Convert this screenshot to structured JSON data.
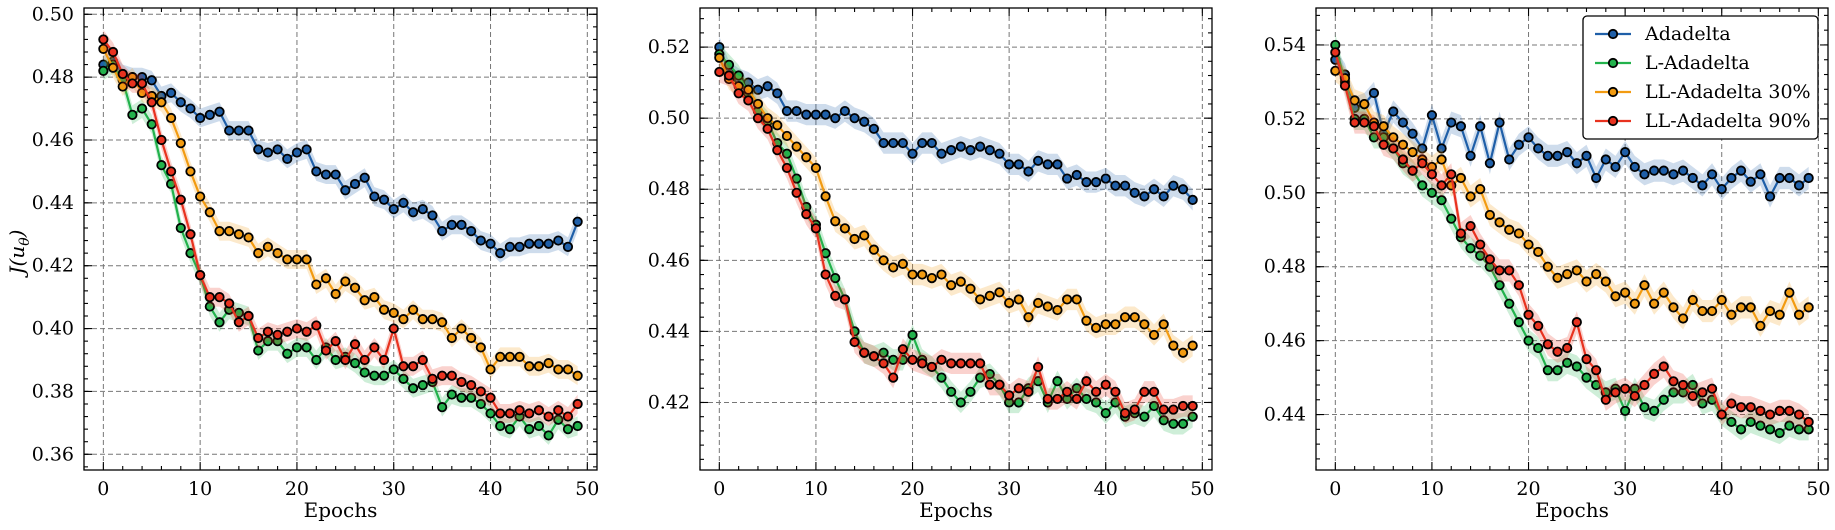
{
  "figure": {
    "ylabel": "J(u_θ)",
    "xlabel": "Epochs"
  },
  "legend": [
    {
      "label": "Adadelta",
      "color": "#1f5fa8"
    },
    {
      "label": "L-Adadelta",
      "color": "#22b24c"
    },
    {
      "label": "LL-Adadelta 30%",
      "color": "#f29b11"
    },
    {
      "label": "LL-Adadelta 90%",
      "color": "#e8321f"
    }
  ],
  "chart_data": [
    {
      "type": "line",
      "xlabel": "Epochs",
      "ylabel": "J(u_θ)",
      "xlim": [
        -2,
        51
      ],
      "ylim": [
        0.355,
        0.502
      ],
      "xticks": [
        0,
        10,
        20,
        30,
        40,
        50
      ],
      "yticks": [
        0.36,
        0.38,
        0.4,
        0.42,
        0.44,
        0.46,
        0.48,
        0.5
      ],
      "yticklabels": [
        "0.36",
        "0.38",
        "0.40",
        "0.42",
        "0.44",
        "0.46",
        "0.48",
        "0.50"
      ],
      "grid": true,
      "band": 0.003,
      "x": [
        0,
        1,
        2,
        3,
        4,
        5,
        6,
        7,
        8,
        9,
        10,
        11,
        12,
        13,
        14,
        15,
        16,
        17,
        18,
        19,
        20,
        21,
        22,
        23,
        24,
        25,
        26,
        27,
        28,
        29,
        30,
        31,
        32,
        33,
        34,
        35,
        36,
        37,
        38,
        39,
        40,
        41,
        42,
        43,
        44,
        45,
        46,
        47,
        48,
        49
      ],
      "series": [
        {
          "name": "Adadelta",
          "color": "#1f5fa8",
          "values": [
            0.484,
            0.485,
            0.481,
            0.48,
            0.48,
            0.479,
            0.474,
            0.475,
            0.472,
            0.47,
            0.467,
            0.468,
            0.469,
            0.463,
            0.463,
            0.463,
            0.457,
            0.456,
            0.457,
            0.454,
            0.456,
            0.457,
            0.45,
            0.449,
            0.449,
            0.444,
            0.446,
            0.448,
            0.442,
            0.441,
            0.438,
            0.44,
            0.437,
            0.438,
            0.436,
            0.431,
            0.433,
            0.433,
            0.431,
            0.428,
            0.427,
            0.424,
            0.426,
            0.426,
            0.427,
            0.427,
            0.427,
            0.428,
            0.426,
            0.434
          ]
        },
        {
          "name": "L-Adadelta",
          "color": "#22b24c",
          "values": [
            0.482,
            0.484,
            0.479,
            0.468,
            0.47,
            0.465,
            0.452,
            0.446,
            0.432,
            0.424,
            0.417,
            0.407,
            0.402,
            0.406,
            0.405,
            0.404,
            0.393,
            0.396,
            0.396,
            0.392,
            0.394,
            0.394,
            0.39,
            0.394,
            0.39,
            0.391,
            0.389,
            0.386,
            0.385,
            0.385,
            0.387,
            0.384,
            0.381,
            0.382,
            0.383,
            0.375,
            0.379,
            0.378,
            0.378,
            0.376,
            0.373,
            0.369,
            0.368,
            0.372,
            0.368,
            0.369,
            0.366,
            0.371,
            0.368,
            0.369
          ]
        },
        {
          "name": "LL-Adadelta 30%",
          "color": "#f29b11",
          "values": [
            0.489,
            0.483,
            0.477,
            0.48,
            0.475,
            0.474,
            0.472,
            0.467,
            0.459,
            0.45,
            0.442,
            0.437,
            0.431,
            0.431,
            0.43,
            0.429,
            0.424,
            0.426,
            0.424,
            0.422,
            0.422,
            0.422,
            0.414,
            0.416,
            0.411,
            0.415,
            0.413,
            0.409,
            0.41,
            0.406,
            0.405,
            0.403,
            0.406,
            0.403,
            0.403,
            0.402,
            0.397,
            0.4,
            0.397,
            0.394,
            0.387,
            0.391,
            0.391,
            0.391,
            0.388,
            0.388,
            0.389,
            0.387,
            0.387,
            0.385
          ]
        },
        {
          "name": "LL-Adadelta 90%",
          "color": "#e8321f",
          "values": [
            0.492,
            0.488,
            0.481,
            0.478,
            0.478,
            0.472,
            0.46,
            0.45,
            0.441,
            0.43,
            0.417,
            0.41,
            0.41,
            0.408,
            0.402,
            0.404,
            0.397,
            0.399,
            0.398,
            0.399,
            0.4,
            0.399,
            0.401,
            0.393,
            0.396,
            0.39,
            0.395,
            0.39,
            0.394,
            0.39,
            0.4,
            0.388,
            0.388,
            0.39,
            0.384,
            0.385,
            0.385,
            0.383,
            0.382,
            0.38,
            0.378,
            0.373,
            0.373,
            0.374,
            0.373,
            0.374,
            0.372,
            0.374,
            0.372,
            0.376
          ]
        }
      ]
    },
    {
      "type": "line",
      "xlabel": "Epochs",
      "ylabel": "",
      "xlim": [
        -2,
        51
      ],
      "ylim": [
        0.401,
        0.531
      ],
      "xticks": [
        0,
        10,
        20,
        30,
        40,
        50
      ],
      "yticks": [
        0.42,
        0.44,
        0.46,
        0.48,
        0.5,
        0.52
      ],
      "yticklabels": [
        "0.42",
        "0.44",
        "0.46",
        "0.48",
        "0.50",
        "0.52"
      ],
      "grid": true,
      "band": 0.003,
      "x": [
        0,
        1,
        2,
        3,
        4,
        5,
        6,
        7,
        8,
        9,
        10,
        11,
        12,
        13,
        14,
        15,
        16,
        17,
        18,
        19,
        20,
        21,
        22,
        23,
        24,
        25,
        26,
        27,
        28,
        29,
        30,
        31,
        32,
        33,
        34,
        35,
        36,
        37,
        38,
        39,
        40,
        41,
        42,
        43,
        44,
        45,
        46,
        47,
        48,
        49
      ],
      "series": [
        {
          "name": "Adadelta",
          "color": "#1f5fa8",
          "values": [
            0.52,
            0.513,
            0.511,
            0.51,
            0.508,
            0.509,
            0.507,
            0.502,
            0.502,
            0.501,
            0.501,
            0.501,
            0.5,
            0.502,
            0.5,
            0.499,
            0.497,
            0.493,
            0.493,
            0.493,
            0.49,
            0.493,
            0.493,
            0.49,
            0.491,
            0.492,
            0.491,
            0.492,
            0.491,
            0.49,
            0.487,
            0.487,
            0.485,
            0.488,
            0.487,
            0.487,
            0.483,
            0.484,
            0.482,
            0.482,
            0.483,
            0.481,
            0.481,
            0.479,
            0.478,
            0.48,
            0.478,
            0.481,
            0.48,
            0.477
          ]
        },
        {
          "name": "L-Adadelta",
          "color": "#22b24c",
          "values": [
            0.518,
            0.515,
            0.512,
            0.507,
            0.502,
            0.499,
            0.493,
            0.49,
            0.483,
            0.475,
            0.47,
            0.462,
            0.455,
            0.449,
            0.44,
            0.434,
            0.433,
            0.434,
            0.432,
            0.432,
            0.439,
            0.432,
            0.43,
            0.427,
            0.423,
            0.42,
            0.423,
            0.427,
            0.428,
            0.425,
            0.42,
            0.42,
            0.424,
            0.426,
            0.42,
            0.426,
            0.421,
            0.424,
            0.421,
            0.42,
            0.417,
            0.42,
            0.416,
            0.417,
            0.416,
            0.419,
            0.415,
            0.414,
            0.414,
            0.416
          ]
        },
        {
          "name": "LL-Adadelta 30%",
          "color": "#f29b11",
          "values": [
            0.517,
            0.511,
            0.509,
            0.508,
            0.504,
            0.5,
            0.498,
            0.495,
            0.492,
            0.489,
            0.486,
            0.478,
            0.471,
            0.469,
            0.466,
            0.467,
            0.463,
            0.46,
            0.458,
            0.459,
            0.456,
            0.456,
            0.455,
            0.456,
            0.453,
            0.454,
            0.452,
            0.449,
            0.45,
            0.451,
            0.448,
            0.449,
            0.444,
            0.448,
            0.447,
            0.446,
            0.449,
            0.449,
            0.443,
            0.441,
            0.442,
            0.442,
            0.444,
            0.444,
            0.442,
            0.439,
            0.442,
            0.436,
            0.434,
            0.436
          ]
        },
        {
          "name": "LL-Adadelta 90%",
          "color": "#e8321f",
          "values": [
            0.513,
            0.512,
            0.507,
            0.505,
            0.5,
            0.497,
            0.491,
            0.486,
            0.479,
            0.473,
            0.469,
            0.456,
            0.45,
            0.449,
            0.437,
            0.434,
            0.433,
            0.431,
            0.427,
            0.435,
            0.432,
            0.431,
            0.43,
            0.432,
            0.431,
            0.431,
            0.431,
            0.431,
            0.425,
            0.425,
            0.422,
            0.424,
            0.423,
            0.43,
            0.421,
            0.421,
            0.423,
            0.421,
            0.426,
            0.423,
            0.425,
            0.423,
            0.417,
            0.418,
            0.423,
            0.423,
            0.418,
            0.418,
            0.419,
            0.419
          ]
        }
      ]
    },
    {
      "type": "line",
      "xlabel": "Epochs",
      "ylabel": "",
      "xlim": [
        -2,
        51
      ],
      "ylim": [
        0.425,
        0.55
      ],
      "xticks": [
        0,
        10,
        20,
        30,
        40,
        50
      ],
      "yticks": [
        0.44,
        0.46,
        0.48,
        0.5,
        0.52,
        0.54
      ],
      "yticklabels": [
        "0.44",
        "0.46",
        "0.48",
        "0.50",
        "0.52",
        "0.54"
      ],
      "grid": true,
      "band": 0.003,
      "legend_position": "top-right",
      "x": [
        0,
        1,
        2,
        3,
        4,
        5,
        6,
        7,
        8,
        9,
        10,
        11,
        12,
        13,
        14,
        15,
        16,
        17,
        18,
        19,
        20,
        21,
        22,
        23,
        24,
        25,
        26,
        27,
        28,
        29,
        30,
        31,
        32,
        33,
        34,
        35,
        36,
        37,
        38,
        39,
        40,
        41,
        42,
        43,
        44,
        45,
        46,
        47,
        48,
        49
      ],
      "series": [
        {
          "name": "Adadelta",
          "color": "#1f5fa8",
          "values": [
            0.536,
            0.532,
            0.523,
            0.524,
            0.527,
            0.516,
            0.522,
            0.519,
            0.516,
            0.512,
            0.521,
            0.512,
            0.519,
            0.518,
            0.51,
            0.518,
            0.508,
            0.519,
            0.509,
            0.513,
            0.515,
            0.512,
            0.51,
            0.51,
            0.511,
            0.508,
            0.51,
            0.504,
            0.509,
            0.507,
            0.511,
            0.507,
            0.505,
            0.506,
            0.506,
            0.505,
            0.506,
            0.504,
            0.502,
            0.505,
            0.501,
            0.504,
            0.506,
            0.503,
            0.505,
            0.499,
            0.504,
            0.504,
            0.502,
            0.504
          ]
        },
        {
          "name": "L-Adadelta",
          "color": "#22b24c",
          "values": [
            0.54,
            0.53,
            0.52,
            0.52,
            0.515,
            0.515,
            0.512,
            0.508,
            0.506,
            0.502,
            0.5,
            0.498,
            0.493,
            0.488,
            0.485,
            0.483,
            0.48,
            0.475,
            0.47,
            0.465,
            0.46,
            0.458,
            0.452,
            0.452,
            0.454,
            0.453,
            0.45,
            0.448,
            0.446,
            0.447,
            0.441,
            0.447,
            0.442,
            0.441,
            0.444,
            0.446,
            0.446,
            0.448,
            0.443,
            0.444,
            0.44,
            0.438,
            0.436,
            0.438,
            0.437,
            0.436,
            0.435,
            0.437,
            0.436,
            0.436
          ]
        },
        {
          "name": "LL-Adadelta 30%",
          "color": "#f29b11",
          "values": [
            0.533,
            0.531,
            0.525,
            0.524,
            0.519,
            0.518,
            0.515,
            0.513,
            0.511,
            0.509,
            0.507,
            0.509,
            0.502,
            0.504,
            0.499,
            0.501,
            0.494,
            0.492,
            0.49,
            0.489,
            0.486,
            0.484,
            0.48,
            0.477,
            0.478,
            0.479,
            0.476,
            0.478,
            0.476,
            0.472,
            0.473,
            0.47,
            0.475,
            0.47,
            0.473,
            0.469,
            0.466,
            0.471,
            0.468,
            0.468,
            0.471,
            0.467,
            0.469,
            0.469,
            0.464,
            0.468,
            0.467,
            0.473,
            0.467,
            0.469
          ]
        },
        {
          "name": "LL-Adadelta 90%",
          "color": "#e8321f",
          "values": [
            0.538,
            0.529,
            0.519,
            0.519,
            0.518,
            0.513,
            0.512,
            0.509,
            0.506,
            0.508,
            0.505,
            0.502,
            0.505,
            0.489,
            0.491,
            0.486,
            0.482,
            0.479,
            0.479,
            0.475,
            0.467,
            0.464,
            0.459,
            0.457,
            0.458,
            0.465,
            0.455,
            0.452,
            0.444,
            0.446,
            0.447,
            0.445,
            0.448,
            0.451,
            0.453,
            0.449,
            0.448,
            0.445,
            0.446,
            0.447,
            0.44,
            0.443,
            0.442,
            0.442,
            0.441,
            0.44,
            0.441,
            0.441,
            0.44,
            0.438
          ]
        }
      ]
    }
  ]
}
